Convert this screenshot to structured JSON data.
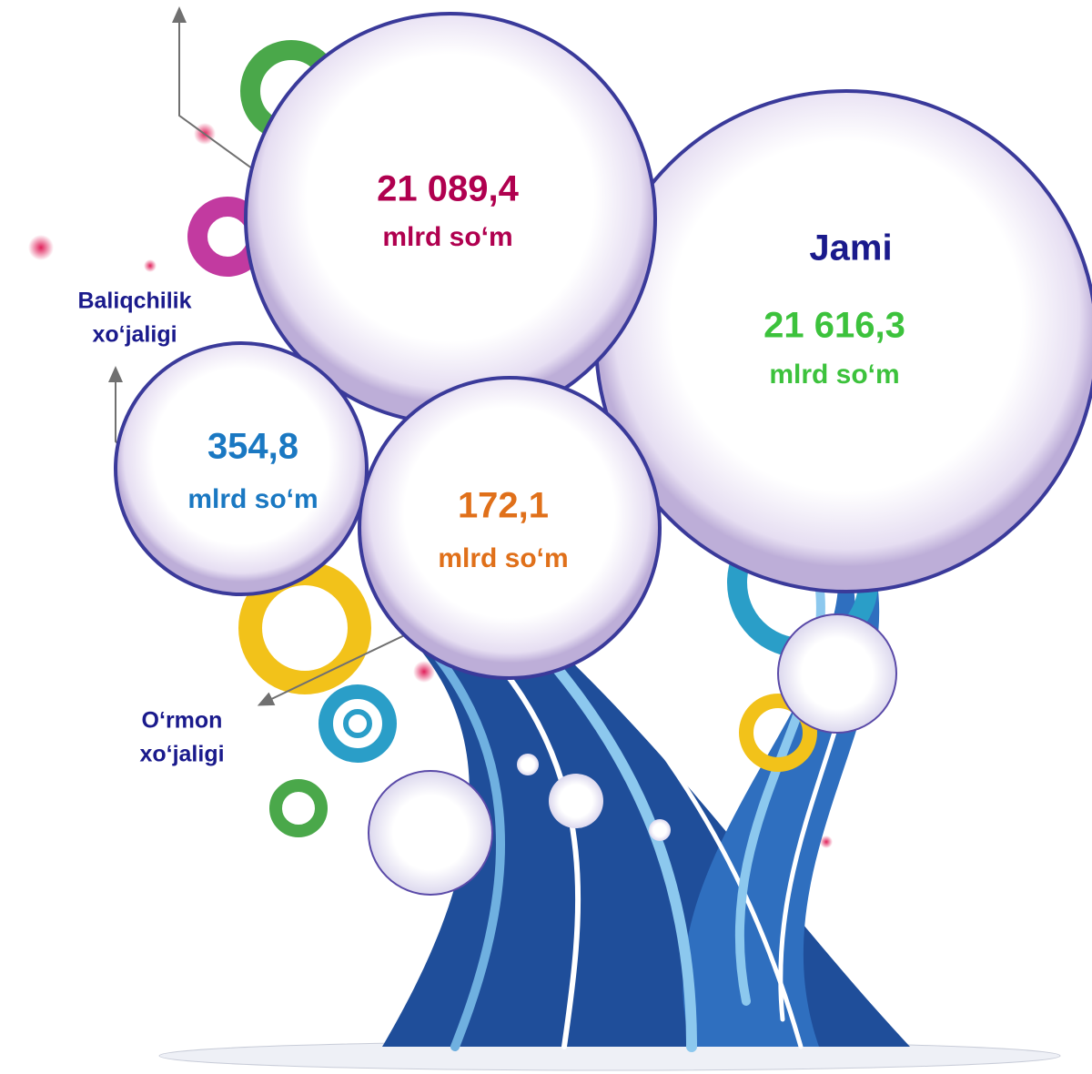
{
  "bubbles": [
    {
      "title": "Jami",
      "value": "21 616,3",
      "unit": "mlrd so‘m",
      "color": "#3cc23c",
      "title_color": "#1a1a8c"
    },
    {
      "value": "21 089,4",
      "unit": "mlrd so‘m",
      "color": "#b0004f"
    },
    {
      "value": "354,8",
      "unit": "mlrd so‘m",
      "color": "#1a78c2"
    },
    {
      "value": "172,1",
      "unit": "mlrd so‘m",
      "color": "#e0701a"
    }
  ],
  "labels": [
    {
      "lines": [
        "Baliqchilik",
        "xo‘jaligi"
      ],
      "color": "#1a1a8c"
    },
    {
      "lines": [
        "O‘rmon",
        "xo‘jaligi"
      ],
      "color": "#1a1a8c"
    }
  ]
}
